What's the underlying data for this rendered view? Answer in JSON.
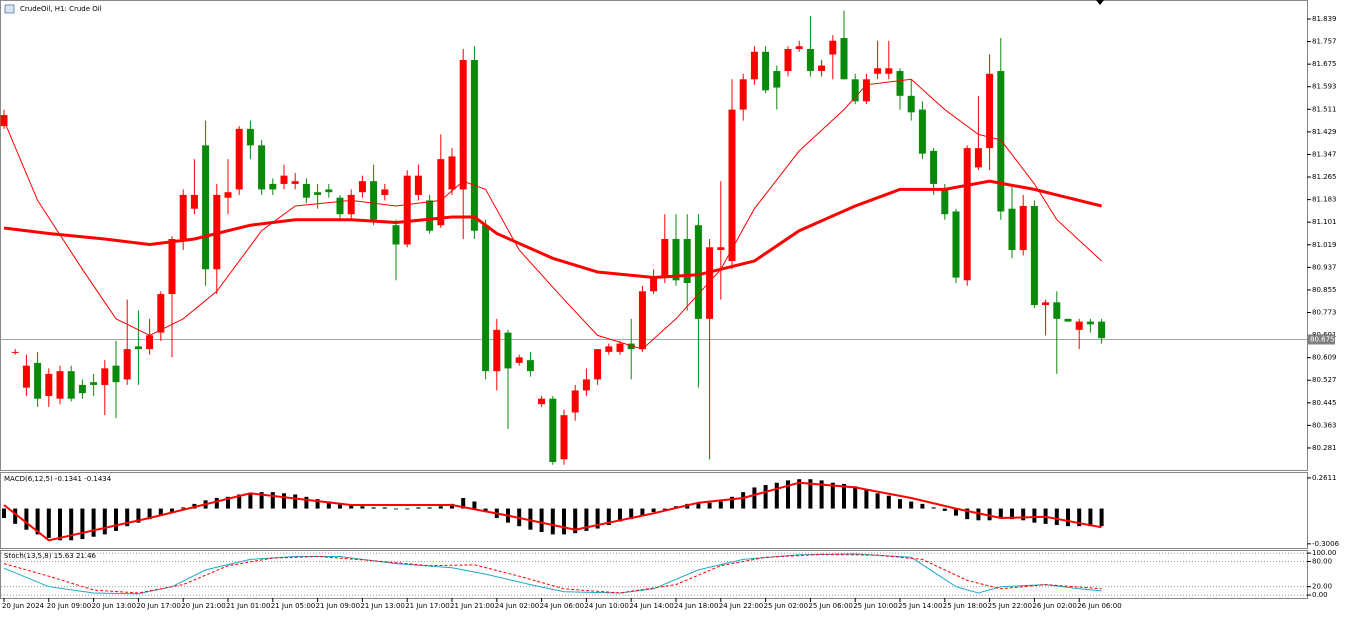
{
  "chart_data": [
    {
      "type": "candlestick",
      "title": "CrudeOil, H1: Crude Oil",
      "categories": [
        "20 Jun 2024",
        null,
        null,
        null,
        "20 Jun 09:00",
        null,
        null,
        null,
        "20 Jun 13:00",
        null,
        null,
        null,
        "20 Jun 17:00",
        null,
        null,
        null,
        "20 Jun 21:00",
        null,
        null,
        null,
        "21 Jun 01:00",
        null,
        null,
        null,
        "21 Jun 05:00",
        null,
        null,
        null,
        "21 Jun 09:00",
        null,
        null,
        null,
        "21 Jun 13:00",
        null,
        null,
        null,
        "21 Jun 17:00",
        null,
        null,
        null,
        "21 Jun 21:00",
        null,
        null,
        null,
        "24 Jun 02:00",
        null,
        null,
        null,
        "24 Jun 06:00",
        null,
        null,
        null,
        "24 Jun 10:00",
        null,
        null,
        null,
        "24 Jun 14:00",
        null,
        null,
        null,
        "24 Jun 18:00",
        null,
        null,
        null,
        "24 Jun 22:00",
        null,
        null,
        null,
        "25 Jun 02:00",
        null,
        null,
        null,
        "25 Jun 06:00",
        null,
        null,
        null,
        "25 Jun 10:00",
        null,
        null,
        null,
        "25 Jun 14:00",
        null,
        null,
        null,
        "25 Jun 18:00",
        null,
        null,
        null,
        "25 Jun 22:00",
        null,
        null,
        null,
        "26 Jun 02:00",
        null,
        null,
        null,
        "26 Jun 06:00",
        null,
        null
      ],
      "open": [
        81.45,
        80.63,
        80.5,
        80.59,
        80.47,
        80.46,
        80.56,
        80.51,
        80.52,
        80.51,
        80.58,
        80.53,
        80.65,
        80.64,
        80.7,
        80.84,
        81.04,
        81.15,
        81.38,
        80.93,
        81.19,
        81.22,
        81.44,
        81.38,
        81.24,
        81.24,
        81.24,
        81.24,
        81.21,
        81.22,
        81.19,
        81.13,
        81.21,
        81.25,
        81.2,
        81.09,
        81.02,
        81.2,
        81.18,
        81.09,
        81.22,
        81.22,
        81.69,
        81.09,
        80.56,
        80.7,
        80.59,
        80.6,
        80.44,
        80.46,
        80.24,
        80.41,
        80.49,
        80.53,
        80.63,
        80.63,
        80.66,
        80.64,
        80.85,
        80.9,
        81.04,
        81.04,
        81.09,
        80.75,
        81.0,
        80.96,
        81.51,
        81.62,
        81.72,
        81.65,
        81.65,
        81.73,
        81.73,
        81.65,
        81.71,
        81.77,
        81.62,
        81.54,
        81.64,
        81.64,
        81.65,
        81.56,
        81.51,
        81.36,
        81.22,
        81.14,
        80.89,
        81.3,
        81.37,
        81.65,
        81.15,
        81.0,
        81.16,
        80.8,
        80.81,
        80.75,
        80.71,
        80.74,
        80.74
      ],
      "high": [
        81.51,
        80.64,
        80.62,
        80.63,
        80.57,
        80.58,
        80.58,
        80.53,
        80.55,
        80.6,
        80.67,
        80.82,
        80.78,
        80.75,
        80.85,
        81.05,
        81.22,
        81.33,
        81.47,
        81.24,
        81.33,
        81.45,
        81.47,
        81.4,
        81.26,
        81.31,
        81.28,
        81.26,
        81.24,
        81.24,
        81.2,
        81.22,
        81.27,
        81.31,
        81.24,
        81.11,
        81.29,
        81.31,
        81.2,
        81.42,
        81.37,
        81.73,
        81.74,
        81.11,
        80.75,
        80.71,
        80.62,
        80.63,
        80.47,
        80.47,
        80.42,
        80.51,
        80.57,
        80.64,
        80.66,
        80.67,
        80.75,
        80.87,
        80.93,
        81.13,
        81.13,
        81.13,
        81.13,
        81.04,
        81.25,
        81.62,
        81.64,
        81.74,
        81.74,
        81.67,
        81.74,
        81.76,
        81.85,
        81.69,
        81.78,
        81.87,
        81.64,
        81.64,
        81.76,
        81.76,
        81.66,
        81.62,
        81.54,
        81.37,
        81.24,
        81.15,
        81.38,
        81.56,
        81.71,
        81.77,
        81.24,
        81.2,
        81.18,
        80.82,
        80.85,
        80.75,
        80.75,
        80.75,
        80.75
      ],
      "low": [
        81.44,
        80.62,
        80.47,
        80.43,
        80.43,
        80.44,
        80.45,
        80.46,
        80.47,
        80.4,
        80.39,
        80.51,
        80.51,
        80.62,
        80.67,
        80.61,
        81.0,
        81.13,
        80.87,
        80.84,
        81.13,
        81.2,
        81.33,
        81.2,
        81.2,
        81.22,
        81.22,
        81.17,
        81.15,
        81.19,
        81.11,
        81.11,
        81.19,
        81.09,
        81.18,
        80.89,
        81.01,
        81.18,
        81.06,
        81.08,
        81.2,
        81.04,
        81.04,
        80.53,
        80.49,
        80.35,
        80.58,
        80.54,
        80.43,
        80.22,
        80.22,
        80.38,
        80.47,
        80.51,
        80.62,
        80.62,
        80.53,
        80.63,
        80.84,
        80.88,
        80.87,
        80.78,
        80.5,
        80.24,
        80.82,
        80.93,
        81.47,
        81.6,
        81.57,
        81.51,
        81.63,
        81.72,
        81.63,
        81.63,
        81.62,
        81.62,
        81.53,
        81.53,
        81.62,
        81.62,
        81.51,
        81.47,
        81.33,
        81.2,
        81.11,
        80.88,
        80.87,
        81.29,
        81.29,
        81.11,
        80.97,
        80.98,
        80.79,
        80.69,
        80.55,
        80.74,
        80.64,
        80.7,
        80.66
      ],
      "close": [
        81.49,
        80.63,
        80.58,
        80.46,
        80.55,
        80.56,
        80.46,
        80.48,
        80.51,
        80.57,
        80.52,
        80.64,
        80.64,
        80.69,
        80.84,
        81.04,
        81.2,
        81.2,
        80.93,
        81.2,
        81.21,
        81.44,
        81.38,
        81.22,
        81.22,
        81.27,
        81.25,
        81.19,
        81.2,
        81.21,
        81.13,
        81.2,
        81.25,
        81.11,
        81.22,
        81.02,
        81.27,
        81.27,
        81.07,
        81.33,
        81.34,
        81.69,
        81.07,
        80.56,
        80.71,
        80.57,
        80.61,
        80.56,
        80.46,
        80.23,
        80.4,
        80.49,
        80.53,
        80.64,
        80.65,
        80.66,
        80.64,
        80.85,
        80.9,
        81.04,
        80.89,
        80.88,
        80.75,
        81.01,
        81.01,
        81.51,
        81.62,
        81.72,
        81.58,
        81.59,
        81.73,
        81.74,
        81.65,
        81.67,
        81.76,
        81.62,
        81.54,
        81.62,
        81.66,
        81.66,
        81.56,
        81.5,
        81.35,
        81.24,
        81.13,
        80.9,
        81.37,
        81.37,
        81.64,
        81.14,
        81.0,
        81.16,
        80.8,
        80.81,
        80.75,
        80.74,
        80.74,
        80.73,
        80.68
      ],
      "up_color": "#ff0000",
      "down_color": "#0a8a0a",
      "overlays": [
        {
          "color": "#ff0000",
          "line_width": 3,
          "x": [
            0,
            4,
            9,
            13,
            17,
            22,
            26,
            31,
            35,
            40,
            42,
            44,
            49,
            53,
            58,
            62,
            67,
            71,
            76,
            80,
            84,
            88,
            92,
            94,
            98
          ],
          "values": [
            81.08,
            81.06,
            81.04,
            81.02,
            81.04,
            81.09,
            81.11,
            81.11,
            81.1,
            81.12,
            81.12,
            81.06,
            80.97,
            80.92,
            80.9,
            80.91,
            80.96,
            81.07,
            81.16,
            81.22,
            81.22,
            81.25,
            81.22,
            81.2,
            81.16
          ]
        },
        {
          "color": "#ff0000",
          "line_width": 1,
          "x": [
            0,
            3,
            7,
            10,
            13,
            16,
            19,
            23,
            26,
            31,
            35,
            39,
            41,
            43,
            46,
            50,
            53,
            57,
            60,
            64,
            67,
            71,
            75,
            77,
            81,
            84,
            87,
            89,
            92,
            94,
            98
          ],
          "values": [
            81.47,
            81.18,
            80.93,
            80.75,
            80.69,
            80.75,
            80.85,
            81.07,
            81.16,
            81.18,
            81.16,
            81.18,
            81.25,
            81.22,
            81.0,
            80.82,
            80.69,
            80.64,
            80.75,
            80.93,
            81.15,
            81.36,
            81.51,
            81.6,
            81.62,
            81.51,
            81.42,
            81.4,
            81.24,
            81.11,
            80.96
          ]
        }
      ],
      "last_price": 80.675,
      "ylim": [
        80.201,
        81.908
      ],
      "yticks": [
        81.839,
        81.757,
        81.675,
        81.593,
        81.511,
        81.429,
        81.347,
        81.265,
        81.183,
        81.101,
        81.019,
        80.937,
        80.855,
        80.773,
        80.691,
        80.609,
        80.527,
        80.445,
        80.363,
        80.281
      ]
    },
    {
      "type": "bar",
      "title": "MACD(6,12,5) -0.1341 -0.1434",
      "color": "#000000",
      "values": [
        -0.08,
        -0.13,
        -0.18,
        -0.22,
        -0.25,
        -0.27,
        -0.27,
        -0.26,
        -0.24,
        -0.22,
        -0.19,
        -0.15,
        -0.12,
        -0.09,
        -0.06,
        -0.03,
        0.01,
        0.04,
        0.07,
        0.09,
        0.1,
        0.12,
        0.13,
        0.14,
        0.14,
        0.13,
        0.12,
        0.1,
        0.08,
        0.06,
        0.04,
        0.03,
        0.02,
        0.01,
        0.01,
        0.0,
        0.0,
        0.01,
        0.01,
        0.02,
        0.04,
        0.09,
        0.06,
        -0.03,
        -0.08,
        -0.12,
        -0.15,
        -0.18,
        -0.2,
        -0.22,
        -0.22,
        -0.21,
        -0.19,
        -0.17,
        -0.14,
        -0.11,
        -0.09,
        -0.06,
        -0.03,
        -0.01,
        0.02,
        0.04,
        0.05,
        0.05,
        0.06,
        0.1,
        0.14,
        0.18,
        0.2,
        0.22,
        0.24,
        0.25,
        0.25,
        0.24,
        0.22,
        0.21,
        0.19,
        0.16,
        0.13,
        0.11,
        0.08,
        0.06,
        0.04,
        0.01,
        -0.02,
        -0.06,
        -0.09,
        -0.1,
        -0.1,
        -0.08,
        -0.09,
        -0.1,
        -0.12,
        -0.13,
        -0.14,
        -0.15,
        -0.15,
        -0.15,
        -0.15
      ],
      "signal": {
        "color": "#ff0000",
        "x": [
          0,
          4,
          13,
          22,
          31,
          40,
          45,
          51,
          58,
          62,
          66,
          71,
          76,
          81,
          85,
          89,
          93,
          98
        ],
        "values": [
          0.03,
          -0.27,
          -0.08,
          0.13,
          0.03,
          0.03,
          -0.06,
          -0.18,
          -0.04,
          0.05,
          0.09,
          0.22,
          0.18,
          0.09,
          0.0,
          -0.08,
          -0.07,
          -0.16
        ]
      },
      "ylim": [
        -0.336,
        0.303
      ],
      "yticks": [
        0.2611,
        -0.3006
      ]
    },
    {
      "type": "line",
      "title": "Stoch(13,5,8) 15.63 21.46",
      "series": [
        {
          "color": "#20a8c8",
          "dashed": false,
          "x": [
            0,
            4,
            8,
            12,
            15,
            18,
            22,
            26,
            30,
            35,
            40,
            43,
            47,
            50,
            55,
            58,
            62,
            66,
            71,
            76,
            81,
            85,
            87,
            89,
            93,
            96,
            98
          ],
          "values": [
            64,
            20,
            5,
            3,
            20,
            60,
            85,
            92,
            92,
            75,
            65,
            50,
            25,
            8,
            5,
            15,
            60,
            85,
            96,
            98,
            90,
            20,
            5,
            20,
            25,
            15,
            10
          ]
        },
        {
          "color": "#ff0000",
          "dashed": true,
          "x": [
            0,
            4,
            8,
            12,
            16,
            20,
            24,
            28,
            33,
            38,
            42,
            46,
            50,
            55,
            60,
            64,
            68,
            73,
            78,
            82,
            86,
            89,
            93,
            98
          ],
          "values": [
            75,
            45,
            12,
            5,
            25,
            70,
            88,
            92,
            82,
            70,
            72,
            45,
            15,
            5,
            25,
            70,
            90,
            97,
            95,
            85,
            35,
            15,
            25,
            15
          ]
        }
      ],
      "ylim": [
        -7,
        105
      ],
      "yticks": [
        {
          "value": 100,
          "label": "100.00"
        },
        {
          "value": 80,
          "label": "80.00"
        },
        {
          "value": 20,
          "label": "20.00"
        },
        {
          "value": 0,
          "label": "0.00"
        }
      ]
    }
  ]
}
